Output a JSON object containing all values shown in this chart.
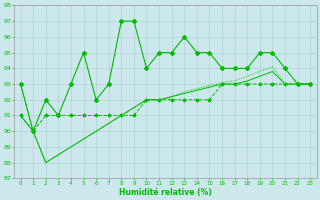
{
  "xlabel": "Humidité relative (%)",
  "xlim": [
    -0.5,
    23.5
  ],
  "ylim": [
    87,
    98
  ],
  "yticks": [
    87,
    88,
    89,
    90,
    91,
    92,
    93,
    94,
    95,
    96,
    97,
    98
  ],
  "xticks": [
    0,
    1,
    2,
    3,
    4,
    5,
    6,
    7,
    8,
    9,
    10,
    11,
    12,
    13,
    14,
    15,
    16,
    17,
    18,
    19,
    20,
    21,
    22,
    23
  ],
  "bg_color": "#cce8ec",
  "grid_color": "#aacccc",
  "line_color": "#00bb00",
  "line1_y": [
    93,
    90,
    92,
    91,
    93,
    95,
    92,
    93,
    97,
    97,
    94,
    95,
    95,
    96,
    95,
    95,
    94,
    94,
    94,
    95,
    95,
    94,
    93,
    93
  ],
  "line2_y": [
    91,
    90,
    91,
    91,
    91,
    91,
    91,
    91,
    91,
    91,
    92,
    92,
    92,
    92,
    92,
    92,
    93,
    93,
    93,
    93,
    93,
    93,
    93,
    93
  ],
  "line3_y": [
    91,
    90,
    88,
    88.5,
    89,
    89.5,
    90,
    90.5,
    91,
    91.5,
    92,
    92,
    92.2,
    92.4,
    92.6,
    92.8,
    93,
    93,
    93.2,
    93.5,
    93.8,
    93,
    93,
    93
  ],
  "line4_y": [
    93,
    90,
    88,
    88.5,
    89,
    89.5,
    90,
    90.5,
    91,
    91.5,
    92,
    92,
    92.2,
    92.5,
    92.7,
    92.9,
    93.1,
    93.2,
    93.5,
    93.8,
    94.1,
    93,
    93,
    93
  ]
}
